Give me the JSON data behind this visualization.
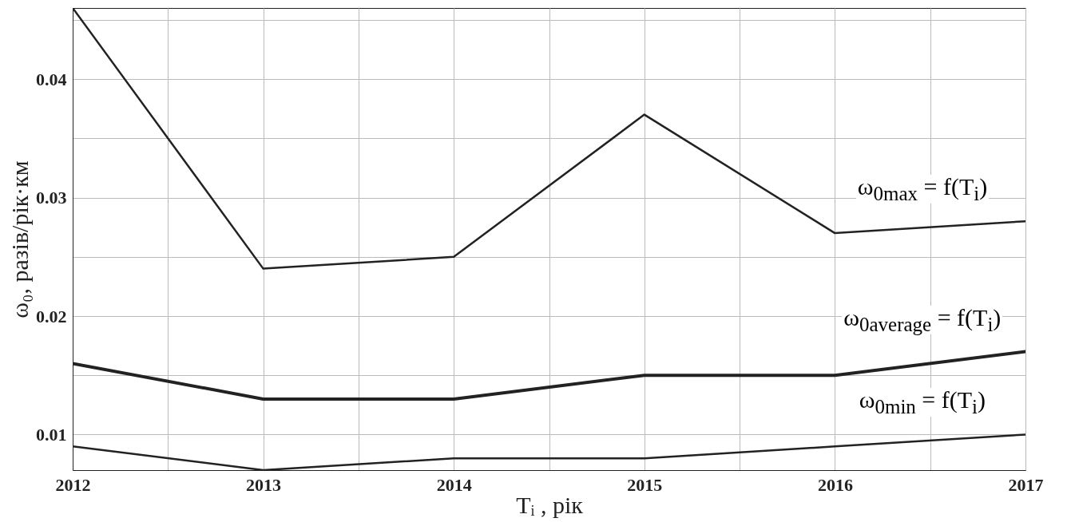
{
  "chart_data": {
    "type": "line",
    "xlabel": "Tᵢ , рік",
    "ylabel": "ω₀, разів/рік·км",
    "x": [
      2012,
      2013,
      2014,
      2015,
      2016,
      2017
    ],
    "series": [
      {
        "name": "ω$_{0max}$ = f(T$_{i}$)",
        "color": "#222222",
        "values": [
          0.046,
          0.024,
          0.025,
          0.037,
          0.027,
          0.028
        ]
      },
      {
        "name": "ω$_{0average}$ = f(T$_{i}$)",
        "color": "#222222",
        "values": [
          0.016,
          0.013,
          0.013,
          0.015,
          0.015,
          0.017
        ]
      },
      {
        "name": "ω$_{0min}$ = f(T$_{i}$)",
        "color": "#222222",
        "values": [
          0.009,
          0.007,
          0.008,
          0.008,
          0.009,
          0.01
        ]
      }
    ],
    "xlim": [
      2012,
      2017
    ],
    "xticks": [
      2012,
      {
        "value": 2012.5,
        "label": null
      },
      2013,
      {
        "value": 2013.5,
        "label": null
      },
      2014,
      {
        "value": 2014.5,
        "label": null
      },
      2015,
      {
        "value": 2015.5,
        "label": null
      },
      2016,
      {
        "value": 2016.5,
        "label": null
      },
      2017
    ],
    "ylim": [
      0.007,
      0.046
    ],
    "yticks": [
      0.01,
      {
        "value": 0.015,
        "label": null
      },
      0.02,
      {
        "value": 0.025,
        "label": null
      },
      0.03,
      {
        "value": 0.035,
        "label": null
      },
      0.04,
      {
        "value": 0.045,
        "label": null
      }
    ],
    "grid": true,
    "marker": "none",
    "line_style": "solid"
  }
}
